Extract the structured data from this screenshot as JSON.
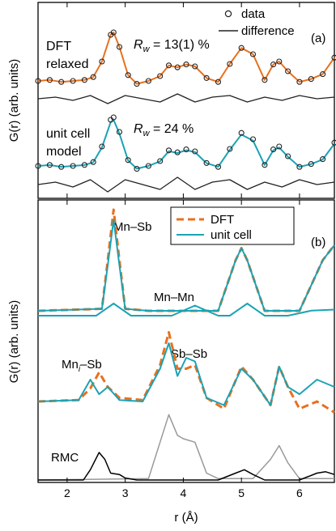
{
  "chart_data": [
    {
      "panel": "(a)",
      "type": "line",
      "ylabel": "G(r) (arb. units)",
      "xlim": [
        1.5,
        6.6
      ],
      "legend": {
        "placement": "top-right",
        "entries": [
          {
            "name": "data",
            "marker": "open-circle"
          },
          {
            "name": "difference",
            "marker": "line"
          }
        ]
      },
      "annotations": [
        {
          "text": "DFT relaxed",
          "lines": [
            "DFT",
            "relaxed"
          ],
          "color": "#e8701e"
        },
        {
          "text": "R_w = 13(1) %",
          "sym": "R",
          "sub": "w",
          "rest": " = 13(1) %",
          "color": "#e8701e"
        },
        {
          "text": "unit cell model",
          "lines": [
            "unit cell",
            "model"
          ],
          "color": "#1ba3b5"
        },
        {
          "text": "R_w = 24 %",
          "sym": "R",
          "sub": "w",
          "rest": " = 24 %",
          "color": "#1ba3b5"
        }
      ],
      "colors": {
        "dft": "#e8701e",
        "unit_cell": "#1ba3b5",
        "data": "#222222",
        "difference": "#222222"
      },
      "series": [
        {
          "key": "data",
          "x": [
            1.5,
            1.7,
            1.9,
            2.1,
            2.3,
            2.45,
            2.6,
            2.75,
            2.8,
            2.9,
            3.05,
            3.2,
            3.4,
            3.6,
            3.75,
            3.9,
            4.05,
            4.2,
            4.4,
            4.6,
            4.8,
            5.0,
            5.2,
            5.4,
            5.55,
            5.65,
            5.8,
            6.0,
            6.2,
            6.4,
            6.6
          ],
          "y": [
            0.0,
            0.02,
            -0.02,
            0.0,
            0.02,
            0.08,
            0.4,
            0.95,
            1.0,
            0.7,
            0.12,
            -0.06,
            0.0,
            0.1,
            0.32,
            0.28,
            0.34,
            0.3,
            0.06,
            -0.02,
            0.35,
            0.68,
            0.55,
            0.02,
            0.34,
            0.4,
            0.2,
            -0.02,
            0.04,
            0.14,
            0.48
          ]
        },
        {
          "key": "difference",
          "x": [
            1.5,
            1.8,
            2.1,
            2.4,
            2.7,
            3.0,
            3.3,
            3.6,
            3.9,
            4.2,
            4.5,
            4.8,
            5.1,
            5.4,
            5.7,
            6.0,
            6.3,
            6.6
          ],
          "y": [
            0.0,
            0.01,
            -0.01,
            0.02,
            -0.03,
            0.02,
            0.0,
            -0.02,
            0.03,
            -0.02,
            0.01,
            0.02,
            -0.02,
            0.01,
            -0.01,
            0.02,
            0.0,
            0.01
          ]
        }
      ]
    },
    {
      "panel": "(b)",
      "type": "line",
      "xlabel": "r (Å)",
      "ylabel": "G(r) (arb. units)",
      "xlim": [
        1.5,
        6.6
      ],
      "x_ticks": [
        "2",
        "3",
        "4",
        "5",
        "6"
      ],
      "legend": {
        "placement": "top-right",
        "entries": [
          {
            "name": "DFT",
            "style": "dashed"
          },
          {
            "name": "unit cell",
            "style": "solid"
          }
        ]
      },
      "annotations": [
        {
          "text": "Mn–Sb"
        },
        {
          "text": "Mn–Mn"
        },
        {
          "text": "Mni–Sb",
          "base": "Mn",
          "sub": "i",
          "rest": "–Sb"
        },
        {
          "text": "Sb–Sb"
        },
        {
          "text": "RMC",
          "color": "#888888"
        }
      ],
      "series": [
        {
          "name": "Mn–Sb DFT",
          "x": [
            1.5,
            2.6,
            2.7,
            2.8,
            2.9,
            3.0,
            3.4,
            4.0,
            4.6,
            4.9,
            5.0,
            5.1,
            5.4,
            6.0,
            6.4,
            6.6
          ],
          "y": [
            0.0,
            0.02,
            0.5,
            1.0,
            0.5,
            0.02,
            0.0,
            0.0,
            0.0,
            0.5,
            0.62,
            0.5,
            0.0,
            0.0,
            0.5,
            0.65
          ]
        },
        {
          "name": "Mn–Sb unit cell",
          "x": [
            1.5,
            2.6,
            2.7,
            2.8,
            2.9,
            3.0,
            3.4,
            4.0,
            4.6,
            4.9,
            5.0,
            5.1,
            5.4,
            6.0,
            6.4,
            6.6
          ],
          "y": [
            0.0,
            0.02,
            0.45,
            0.9,
            0.45,
            0.02,
            0.0,
            0.0,
            0.0,
            0.5,
            0.62,
            0.5,
            0.0,
            0.0,
            0.5,
            0.65
          ]
        },
        {
          "name": "Mn–Mn unit cell",
          "x": [
            1.5,
            2.5,
            2.8,
            3.1,
            3.8,
            4.2,
            4.6,
            4.8,
            5.1,
            5.4,
            5.8,
            6.2,
            6.6
          ],
          "y": [
            0.0,
            0.0,
            0.12,
            0.0,
            0.0,
            0.1,
            0.0,
            0.0,
            0.12,
            0.0,
            0.0,
            0.05,
            0.06
          ]
        },
        {
          "name": "Sb network DFT",
          "x": [
            1.5,
            2.2,
            2.4,
            2.55,
            2.7,
            2.9,
            3.3,
            3.6,
            3.75,
            3.9,
            4.05,
            4.2,
            4.4,
            4.7,
            5.0,
            5.2,
            5.5,
            5.65,
            5.8,
            6.0,
            6.3,
            6.6
          ],
          "y": [
            0.0,
            0.02,
            0.18,
            0.4,
            0.2,
            0.05,
            0.02,
            0.5,
            0.95,
            0.45,
            0.45,
            0.5,
            0.05,
            -0.1,
            0.48,
            0.3,
            -0.05,
            0.48,
            0.2,
            -0.1,
            0.0,
            -0.15
          ]
        },
        {
          "name": "Sb network unit cell",
          "x": [
            1.5,
            2.2,
            2.4,
            2.55,
            2.7,
            2.9,
            3.3,
            3.6,
            3.75,
            3.9,
            4.05,
            4.2,
            4.4,
            4.7,
            5.0,
            5.2,
            5.5,
            5.65,
            5.8,
            6.0,
            6.3,
            6.6
          ],
          "y": [
            0.0,
            0.02,
            0.3,
            0.1,
            0.2,
            0.02,
            0.0,
            0.45,
            0.8,
            0.35,
            0.6,
            0.55,
            0.05,
            -0.05,
            0.45,
            0.3,
            -0.05,
            0.48,
            0.2,
            0.1,
            0.3,
            0.2
          ]
        },
        {
          "name": "RMC grey",
          "x": [
            1.5,
            3.4,
            3.6,
            3.75,
            3.9,
            4.0,
            4.2,
            4.4,
            4.6,
            5.2,
            5.5,
            5.65,
            5.8,
            6.0,
            6.6
          ],
          "y": [
            0.0,
            0.02,
            0.55,
            0.95,
            0.65,
            0.6,
            0.55,
            0.1,
            0.02,
            0.02,
            0.3,
            0.5,
            0.25,
            0.02,
            0.02
          ]
        },
        {
          "name": "RMC black",
          "x": [
            1.5,
            2.28,
            2.4,
            2.55,
            2.65,
            2.75,
            2.9,
            3.0,
            3.2,
            4.6,
            4.9,
            5.05,
            5.2,
            5.4,
            6.0,
            6.3,
            6.45,
            6.6
          ],
          "y": [
            0.0,
            0.0,
            0.15,
            0.4,
            0.3,
            0.1,
            0.08,
            0.03,
            0.0,
            0.0,
            0.1,
            0.15,
            0.08,
            0.0,
            0.0,
            0.1,
            0.12,
            0.08
          ]
        }
      ]
    }
  ]
}
